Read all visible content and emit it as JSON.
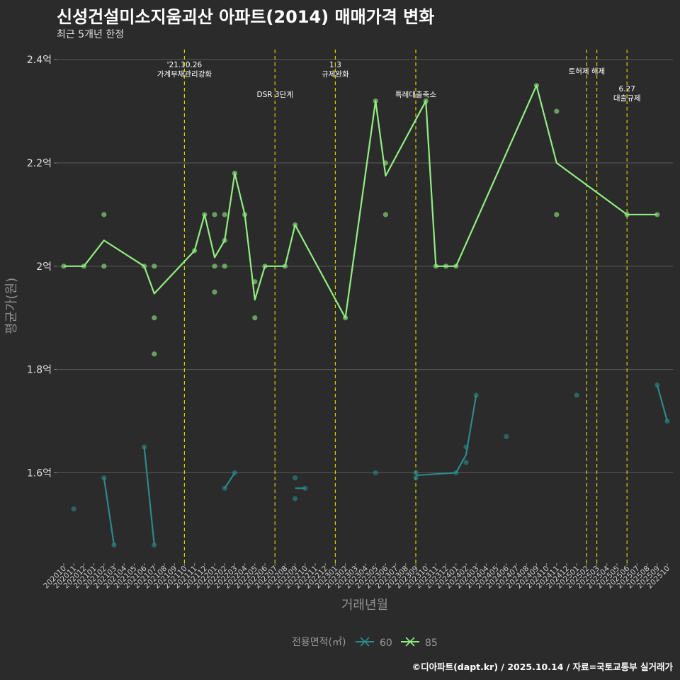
{
  "title": "신성건설미소지움괴산 아파트(2014) 매매가격 변화",
  "subtitle": "최근 5개년 한정",
  "caption": "©디아파트(dapt.kr) / 2025.10.14 / 자료=국토교통부 실거래가",
  "colors": {
    "background": "#2b2b2b",
    "gridline": "#5a5a5a",
    "vline": "#d4d400",
    "s85": "#90ee80",
    "s60": "#2a8a8a"
  },
  "chart_data": {
    "type": "line",
    "xlabel": "거래년월",
    "ylabel": "평균가(원)",
    "ylim": [
      1.425,
      2.425
    ],
    "y_ticks": [
      1.6,
      1.8,
      2.0,
      2.2,
      2.4
    ],
    "y_tick_labels": [
      "1.6억",
      "1.8억",
      "2억",
      "2.2억",
      "2.4억"
    ],
    "categories": [
      "202010",
      "202011",
      "202012",
      "202101",
      "202102",
      "202103",
      "202104",
      "202105",
      "202106",
      "202107",
      "202108",
      "202109",
      "202110",
      "202111",
      "202112",
      "202201",
      "202202",
      "202203",
      "202204",
      "202205",
      "202206",
      "202207",
      "202208",
      "202209",
      "202210",
      "202211",
      "202212",
      "202301",
      "202302",
      "202303",
      "202304",
      "202305",
      "202306",
      "202307",
      "202308",
      "202309",
      "202310",
      "202311",
      "202312",
      "202401",
      "202402",
      "202403",
      "202404",
      "202405",
      "202406",
      "202407",
      "202408",
      "202409",
      "202410",
      "202411",
      "202412",
      "202501",
      "202502",
      "202503",
      "202504",
      "202505",
      "202506",
      "202507",
      "202508",
      "202509",
      "202510"
    ],
    "legend": {
      "title": "전용면적(㎡)",
      "position": "bottom",
      "entries": [
        "60",
        "85"
      ]
    },
    "annotations": [
      {
        "x": 12,
        "text": "'21.10.26\n가계부채관리강화",
        "row": 0
      },
      {
        "x": 21,
        "text": "DSR 3단계",
        "row": 1
      },
      {
        "x": 27,
        "text": "1.3\n규제완화",
        "row": 0
      },
      {
        "x": 35,
        "text": "특례대출축소",
        "row": 1
      },
      {
        "x": 52,
        "text": "토허제 해제",
        "row": 0
      },
      {
        "x": 53,
        "text": "",
        "row": 0
      },
      {
        "x": 56,
        "text": "6.27\n대출규제",
        "row": 1
      }
    ],
    "series": [
      {
        "name": "85",
        "color": "#90ee80",
        "line": [
          [
            0,
            2.0
          ],
          [
            2,
            2.0
          ],
          [
            4,
            2.05
          ],
          [
            8,
            2.0
          ],
          [
            9,
            1.947
          ],
          [
            13,
            2.03
          ],
          [
            14,
            2.1
          ],
          [
            15,
            2.017
          ],
          [
            16,
            2.05
          ],
          [
            17,
            2.18
          ],
          [
            18,
            2.1
          ],
          [
            19,
            1.935
          ],
          [
            20,
            2.0
          ],
          [
            22,
            2.0
          ],
          [
            23,
            2.08
          ],
          [
            28,
            1.9
          ],
          [
            31,
            2.32
          ],
          [
            32,
            2.175
          ],
          [
            36,
            2.32
          ],
          [
            37,
            2.0
          ],
          [
            38,
            2.0
          ],
          [
            39,
            2.0
          ],
          [
            47,
            2.35
          ],
          [
            49,
            2.2
          ],
          [
            56,
            2.1
          ],
          [
            59,
            2.1
          ]
        ],
        "points": [
          [
            0,
            2.0
          ],
          [
            2,
            2.0
          ],
          [
            4,
            2.1
          ],
          [
            4,
            2.0
          ],
          [
            8,
            2.0
          ],
          [
            9,
            2.0
          ],
          [
            9,
            1.9
          ],
          [
            9,
            1.83
          ],
          [
            13,
            2.03
          ],
          [
            14,
            2.1
          ],
          [
            15,
            2.1
          ],
          [
            15,
            2.0
          ],
          [
            15,
            1.95
          ],
          [
            16,
            2.1
          ],
          [
            16,
            2.05
          ],
          [
            16,
            2.0
          ],
          [
            17,
            2.18
          ],
          [
            18,
            2.1
          ],
          [
            19,
            1.97
          ],
          [
            19,
            1.9
          ],
          [
            20,
            2.0
          ],
          [
            22,
            2.0
          ],
          [
            23,
            2.08
          ],
          [
            28,
            1.9
          ],
          [
            31,
            2.32
          ],
          [
            32,
            2.2
          ],
          [
            32,
            2.1
          ],
          [
            36,
            2.32
          ],
          [
            37,
            2.0
          ],
          [
            38,
            2.0
          ],
          [
            39,
            2.0
          ],
          [
            47,
            2.35
          ],
          [
            49,
            2.3
          ],
          [
            49,
            2.1
          ],
          [
            56,
            2.1
          ],
          [
            59,
            2.1
          ]
        ]
      },
      {
        "name": "60",
        "color": "#2a8a8a",
        "segments": [
          [
            [
              4,
              1.59
            ],
            [
              5,
              1.46
            ]
          ],
          [
            [
              8,
              1.65
            ],
            [
              9,
              1.46
            ]
          ],
          [
            [
              16,
              1.57
            ],
            [
              17,
              1.6
            ]
          ],
          [
            [
              23,
              1.57
            ],
            [
              24,
              1.57
            ]
          ],
          [
            [
              35,
              1.595
            ],
            [
              39,
              1.6
            ],
            [
              40,
              1.635
            ],
            [
              41,
              1.75
            ]
          ],
          [
            [
              59,
              1.77
            ],
            [
              60,
              1.7
            ]
          ]
        ],
        "points": [
          [
            1,
            1.53
          ],
          [
            4,
            1.59
          ],
          [
            5,
            1.46
          ],
          [
            8,
            1.65
          ],
          [
            9,
            1.46
          ],
          [
            16,
            1.57
          ],
          [
            17,
            1.6
          ],
          [
            23,
            1.59
          ],
          [
            23,
            1.55
          ],
          [
            24,
            1.57
          ],
          [
            31,
            1.6
          ],
          [
            35,
            1.6
          ],
          [
            35,
            1.59
          ],
          [
            39,
            1.6
          ],
          [
            40,
            1.65
          ],
          [
            40,
            1.62
          ],
          [
            41,
            1.75
          ],
          [
            44,
            1.67
          ],
          [
            51,
            1.75
          ],
          [
            59,
            1.77
          ],
          [
            60,
            1.7
          ]
        ]
      }
    ]
  }
}
